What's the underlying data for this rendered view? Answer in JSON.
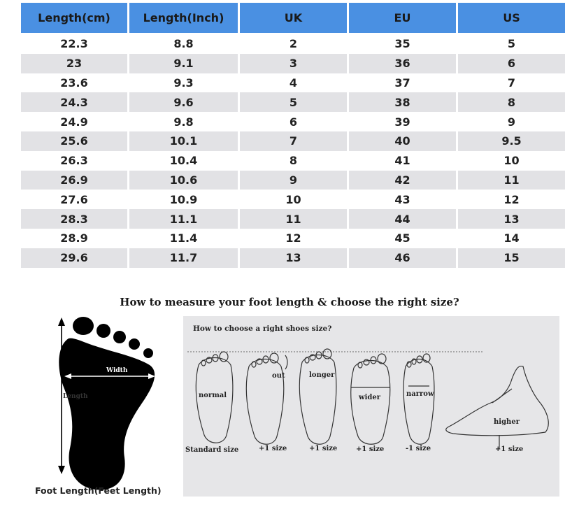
{
  "size_table": {
    "headers": [
      "Length(cm)",
      "Length(Inch)",
      "UK",
      "EU",
      "US"
    ],
    "rows": [
      [
        "22.3",
        "8.8",
        "2",
        "35",
        "5"
      ],
      [
        "23",
        "9.1",
        "3",
        "36",
        "6"
      ],
      [
        "23.6",
        "9.3",
        "4",
        "37",
        "7"
      ],
      [
        "24.3",
        "9.6",
        "5",
        "38",
        "8"
      ],
      [
        "24.9",
        "9.8",
        "6",
        "39",
        "9"
      ],
      [
        "25.6",
        "10.1",
        "7",
        "40",
        "9.5"
      ],
      [
        "26.3",
        "10.4",
        "8",
        "41",
        "10"
      ],
      [
        "26.9",
        "10.6",
        "9",
        "42",
        "11"
      ],
      [
        "27.6",
        "10.9",
        "10",
        "43",
        "12"
      ],
      [
        "28.3",
        "11.1",
        "11",
        "44",
        "13"
      ],
      [
        "28.9",
        "11.4",
        "12",
        "45",
        "14"
      ],
      [
        "29.6",
        "11.7",
        "13",
        "46",
        "15"
      ]
    ],
    "colors": {
      "header": "#4a90e2",
      "shaded_row": "#e2e2e5"
    }
  },
  "guide": {
    "title": "How to measure your foot length & choose the right size?",
    "foot_diagram": {
      "width_label": "Width",
      "length_label": "Length",
      "caption": "Foot Length(Feet Length)"
    },
    "choose": {
      "title": "How to choose a right shoes size?",
      "feet": [
        {
          "label": "normal",
          "size": "Standard size"
        },
        {
          "label": "out",
          "size": "+1 size"
        },
        {
          "label": "longer",
          "size": "+1 size"
        },
        {
          "label": "wider",
          "size": "+1 size"
        },
        {
          "label": "narrow",
          "size": "-1 size"
        },
        {
          "label": "higher",
          "size": "+1 size"
        }
      ]
    }
  }
}
